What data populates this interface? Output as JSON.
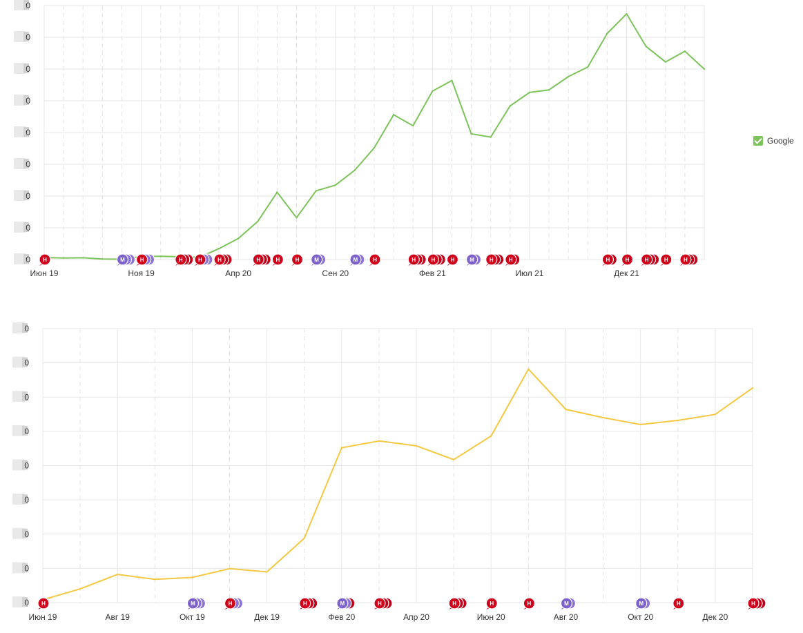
{
  "legend": {
    "label": "Google"
  },
  "chart_data": [
    {
      "type": "line",
      "x_ticks": [
        "Июн 19",
        "Ноя 19",
        "Апр 20",
        "Сен 20",
        "Фев 21",
        "Июл 21",
        "Дек 21"
      ],
      "y_tick_labels": [
        "0",
        "0",
        "0",
        "0",
        "0",
        "0",
        "0",
        "0",
        "0"
      ],
      "ylim": [
        0,
        100
      ],
      "grid": true,
      "legend_position": "right",
      "series": [
        {
          "name": "Google",
          "color": "#7cc35a",
          "points": [
            [
              "2019-06",
              0.8
            ],
            [
              "2019-07",
              0.6
            ],
            [
              "2019-08",
              0.7
            ],
            [
              "2019-09",
              0.2
            ],
            [
              "2019-10",
              0.1
            ],
            [
              "2019-11",
              1.2
            ],
            [
              "2019-12",
              1.3
            ],
            [
              "2020-01",
              1.1
            ],
            [
              "2020-02",
              0.9
            ],
            [
              "2020-03",
              4.3
            ],
            [
              "2020-04",
              8.3
            ],
            [
              "2020-05",
              15.0
            ],
            [
              "2020-06",
              26.5
            ],
            [
              "2020-07",
              16.5
            ],
            [
              "2020-08",
              27.0
            ],
            [
              "2020-09",
              29.3
            ],
            [
              "2020-10",
              35.2
            ],
            [
              "2020-11",
              44.0
            ],
            [
              "2020-12",
              57.0
            ],
            [
              "2021-01",
              52.7
            ],
            [
              "2021-02",
              66.3
            ],
            [
              "2021-03",
              70.5
            ],
            [
              "2021-04",
              49.5
            ],
            [
              "2021-05",
              48.2
            ],
            [
              "2021-06",
              60.5
            ],
            [
              "2021-07",
              65.8
            ],
            [
              "2021-08",
              66.8
            ],
            [
              "2021-09",
              72.0
            ],
            [
              "2021-10",
              75.8
            ],
            [
              "2021-11",
              89.0
            ],
            [
              "2021-12",
              96.7
            ],
            [
              "2022-01",
              83.9
            ],
            [
              "2022-02",
              77.8
            ],
            [
              "2022-03",
              82.0
            ],
            [
              "2022-04",
              75.0
            ]
          ]
        }
      ],
      "markers": [
        {
          "month": "2019-06",
          "items": [
            "Н"
          ]
        },
        {
          "month": "2019-10",
          "items": [
            "М",
            "М",
            "М"
          ]
        },
        {
          "month": "2019-11",
          "items": [
            "Н",
            "М",
            "М"
          ]
        },
        {
          "month": "2020-01",
          "items": [
            "Н",
            "Н",
            "Н"
          ]
        },
        {
          "month": "2020-02",
          "items": [
            "Н",
            "М",
            "М"
          ]
        },
        {
          "month": "2020-03",
          "items": [
            "Н",
            "Н",
            "Н"
          ]
        },
        {
          "month": "2020-05",
          "items": [
            "Н",
            "Н",
            "Н"
          ]
        },
        {
          "month": "2020-06",
          "items": [
            "Н"
          ]
        },
        {
          "month": "2020-07",
          "items": [
            "Н"
          ]
        },
        {
          "month": "2020-08",
          "items": [
            "М",
            "М"
          ]
        },
        {
          "month": "2020-10",
          "items": [
            "М",
            "М"
          ]
        },
        {
          "month": "2020-11",
          "items": [
            "Н"
          ]
        },
        {
          "month": "2021-01",
          "items": [
            "Н",
            "Н",
            "Н"
          ]
        },
        {
          "month": "2021-02",
          "items": [
            "Н",
            "Н",
            "Н"
          ]
        },
        {
          "month": "2021-03",
          "items": [
            "Н"
          ]
        },
        {
          "month": "2021-04",
          "items": [
            "М",
            "М"
          ]
        },
        {
          "month": "2021-05",
          "items": [
            "Н",
            "Н",
            "Н"
          ]
        },
        {
          "month": "2021-06",
          "items": [
            "Н",
            "Н"
          ]
        },
        {
          "month": "2021-11",
          "items": [
            "Н",
            "Н"
          ]
        },
        {
          "month": "2021-12",
          "items": [
            "Н"
          ]
        },
        {
          "month": "2022-01",
          "items": [
            "Н",
            "Н",
            "Н"
          ]
        },
        {
          "month": "2022-02",
          "items": [
            "Н"
          ]
        },
        {
          "month": "2022-03",
          "items": [
            "Н",
            "Н",
            "Н"
          ]
        }
      ]
    },
    {
      "type": "line",
      "x_ticks": [
        "Июн 19",
        "Авг 19",
        "Окт 19",
        "Дек 19",
        "Фев 20",
        "Апр 20",
        "Июн 20",
        "Авг 20",
        "Окт 20",
        "Дек 20"
      ],
      "y_tick_labels": [
        "0",
        "0",
        "0",
        "0",
        "0",
        "0",
        "0",
        "0",
        "0"
      ],
      "ylim": [
        0,
        100
      ],
      "grid": true,
      "series": [
        {
          "color": "#f5c842",
          "points": [
            [
              "2019-06",
              1.0
            ],
            [
              "2019-07",
              5.0
            ],
            [
              "2019-08",
              10.3
            ],
            [
              "2019-09",
              8.5
            ],
            [
              "2019-10",
              9.2
            ],
            [
              "2019-11",
              12.4
            ],
            [
              "2019-12",
              11.2
            ],
            [
              "2020-01",
              23.5
            ],
            [
              "2020-02",
              56.5
            ],
            [
              "2020-03",
              59.0
            ],
            [
              "2020-04",
              57.2
            ],
            [
              "2020-05",
              52.2
            ],
            [
              "2020-06",
              60.8
            ],
            [
              "2020-07",
              85.2
            ],
            [
              "2020-08",
              70.5
            ],
            [
              "2020-09",
              67.5
            ],
            [
              "2020-10",
              65.0
            ],
            [
              "2020-11",
              66.5
            ],
            [
              "2020-12",
              68.7
            ],
            [
              "2021-01",
              78.3
            ]
          ]
        }
      ],
      "markers": [
        {
          "month": "2019-06",
          "items": [
            "Н"
          ]
        },
        {
          "month": "2019-10",
          "items": [
            "М",
            "М",
            "М"
          ]
        },
        {
          "month": "2019-11",
          "items": [
            "Н",
            "М",
            "М"
          ]
        },
        {
          "month": "2020-01",
          "items": [
            "Н",
            "Н",
            "Н"
          ]
        },
        {
          "month": "2020-02",
          "items": [
            "М",
            "М",
            "Н"
          ]
        },
        {
          "month": "2020-03",
          "items": [
            "Н",
            "Н",
            "Н"
          ]
        },
        {
          "month": "2020-05",
          "items": [
            "Н",
            "Н",
            "Н"
          ]
        },
        {
          "month": "2020-06",
          "items": [
            "Н"
          ]
        },
        {
          "month": "2020-07",
          "items": [
            "Н"
          ]
        },
        {
          "month": "2020-08",
          "items": [
            "М",
            "М"
          ]
        },
        {
          "month": "2020-10",
          "items": [
            "М",
            "М"
          ]
        },
        {
          "month": "2020-11",
          "items": [
            "Н"
          ]
        },
        {
          "month": "2021-01",
          "items": [
            "Н",
            "Н",
            "Н"
          ]
        }
      ]
    }
  ]
}
